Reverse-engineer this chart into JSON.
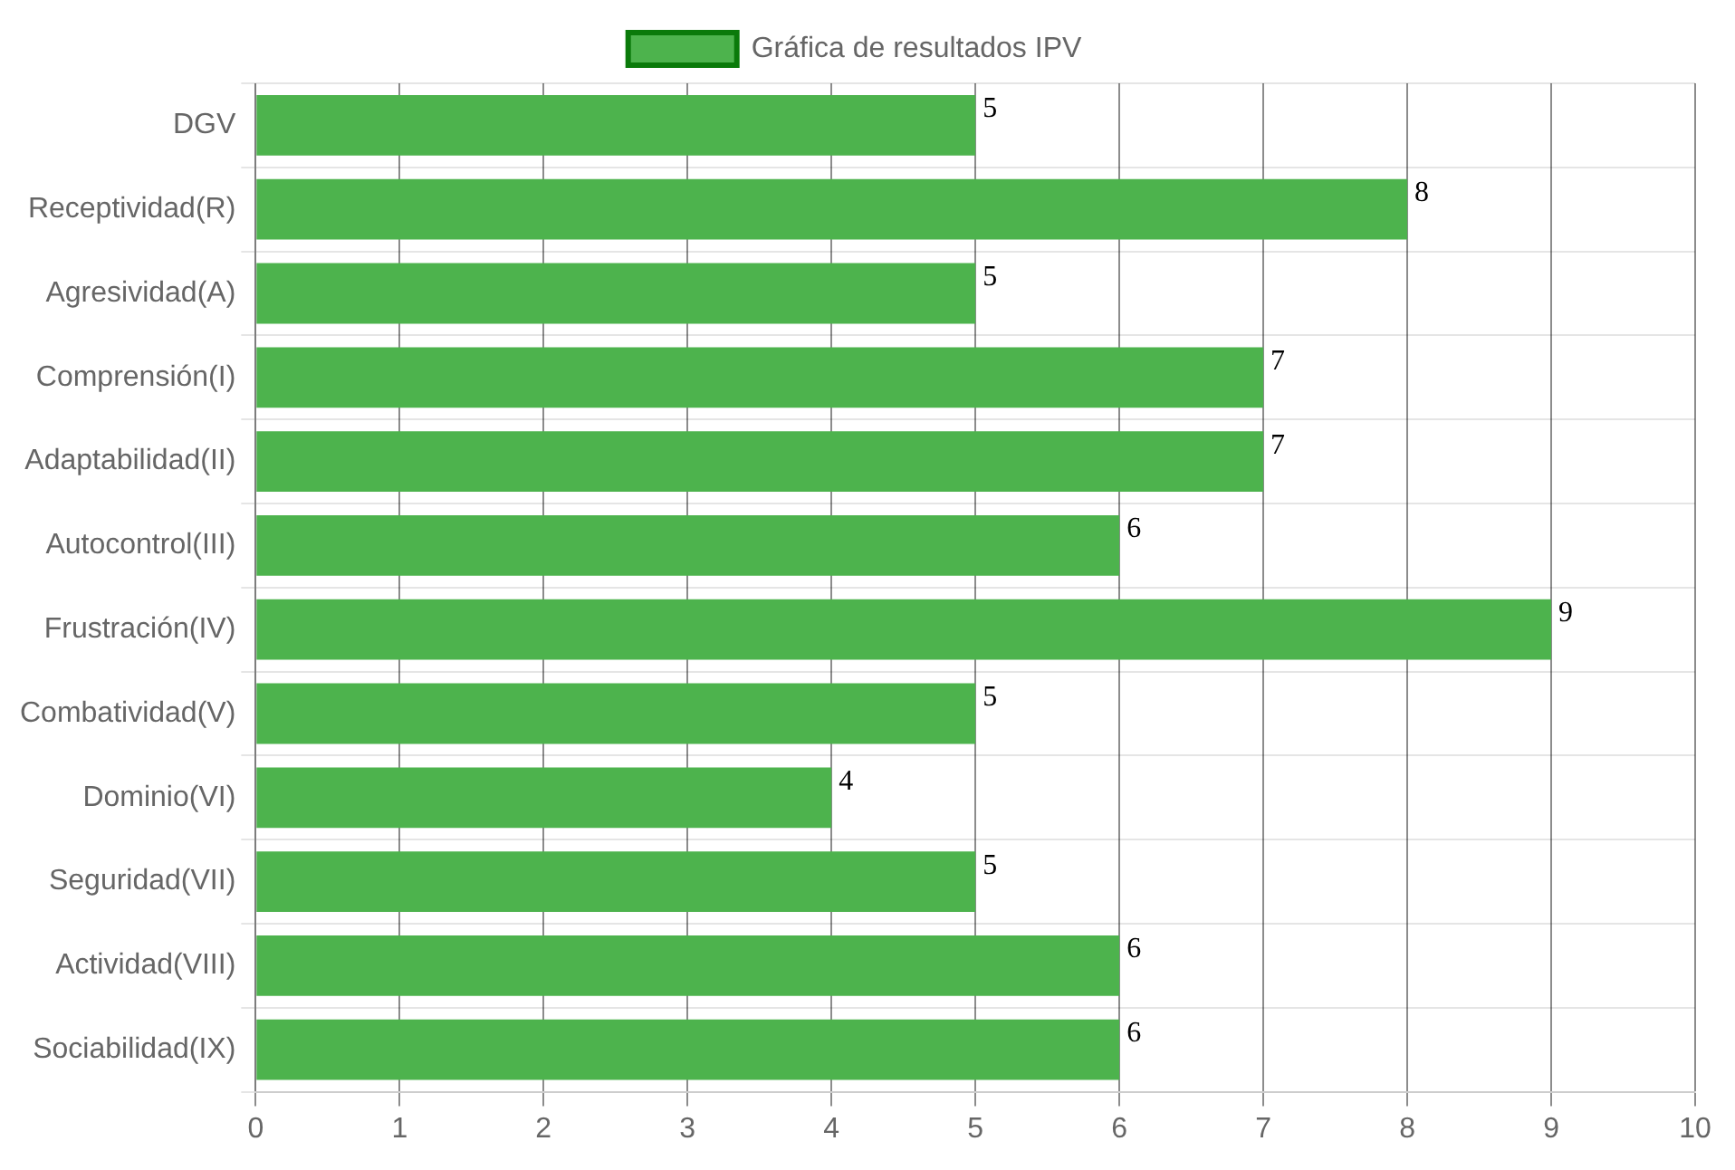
{
  "chart_data": {
    "type": "bar",
    "orientation": "horizontal",
    "categories": [
      "DGV",
      "Receptividad(R)",
      "Agresividad(A)",
      "Comprensión(I)",
      "Adaptabilidad(II)",
      "Autocontrol(III)",
      "Frustración(IV)",
      "Combatividad(V)",
      "Dominio(VI)",
      "Seguridad(VII)",
      "Actividad(VIII)",
      "Sociabilidad(IX)"
    ],
    "series": [
      {
        "name": "Gráfica de resultados IPV",
        "color": "#4db34d",
        "values": [
          5,
          8,
          5,
          7,
          7,
          6,
          9,
          5,
          4,
          5,
          6,
          6
        ]
      }
    ],
    "xlim": [
      0,
      10
    ],
    "xticks": [
      0,
      1,
      2,
      3,
      4,
      5,
      6,
      7,
      8,
      9,
      10
    ],
    "grid": true,
    "legend": "top",
    "data_labels": true
  }
}
